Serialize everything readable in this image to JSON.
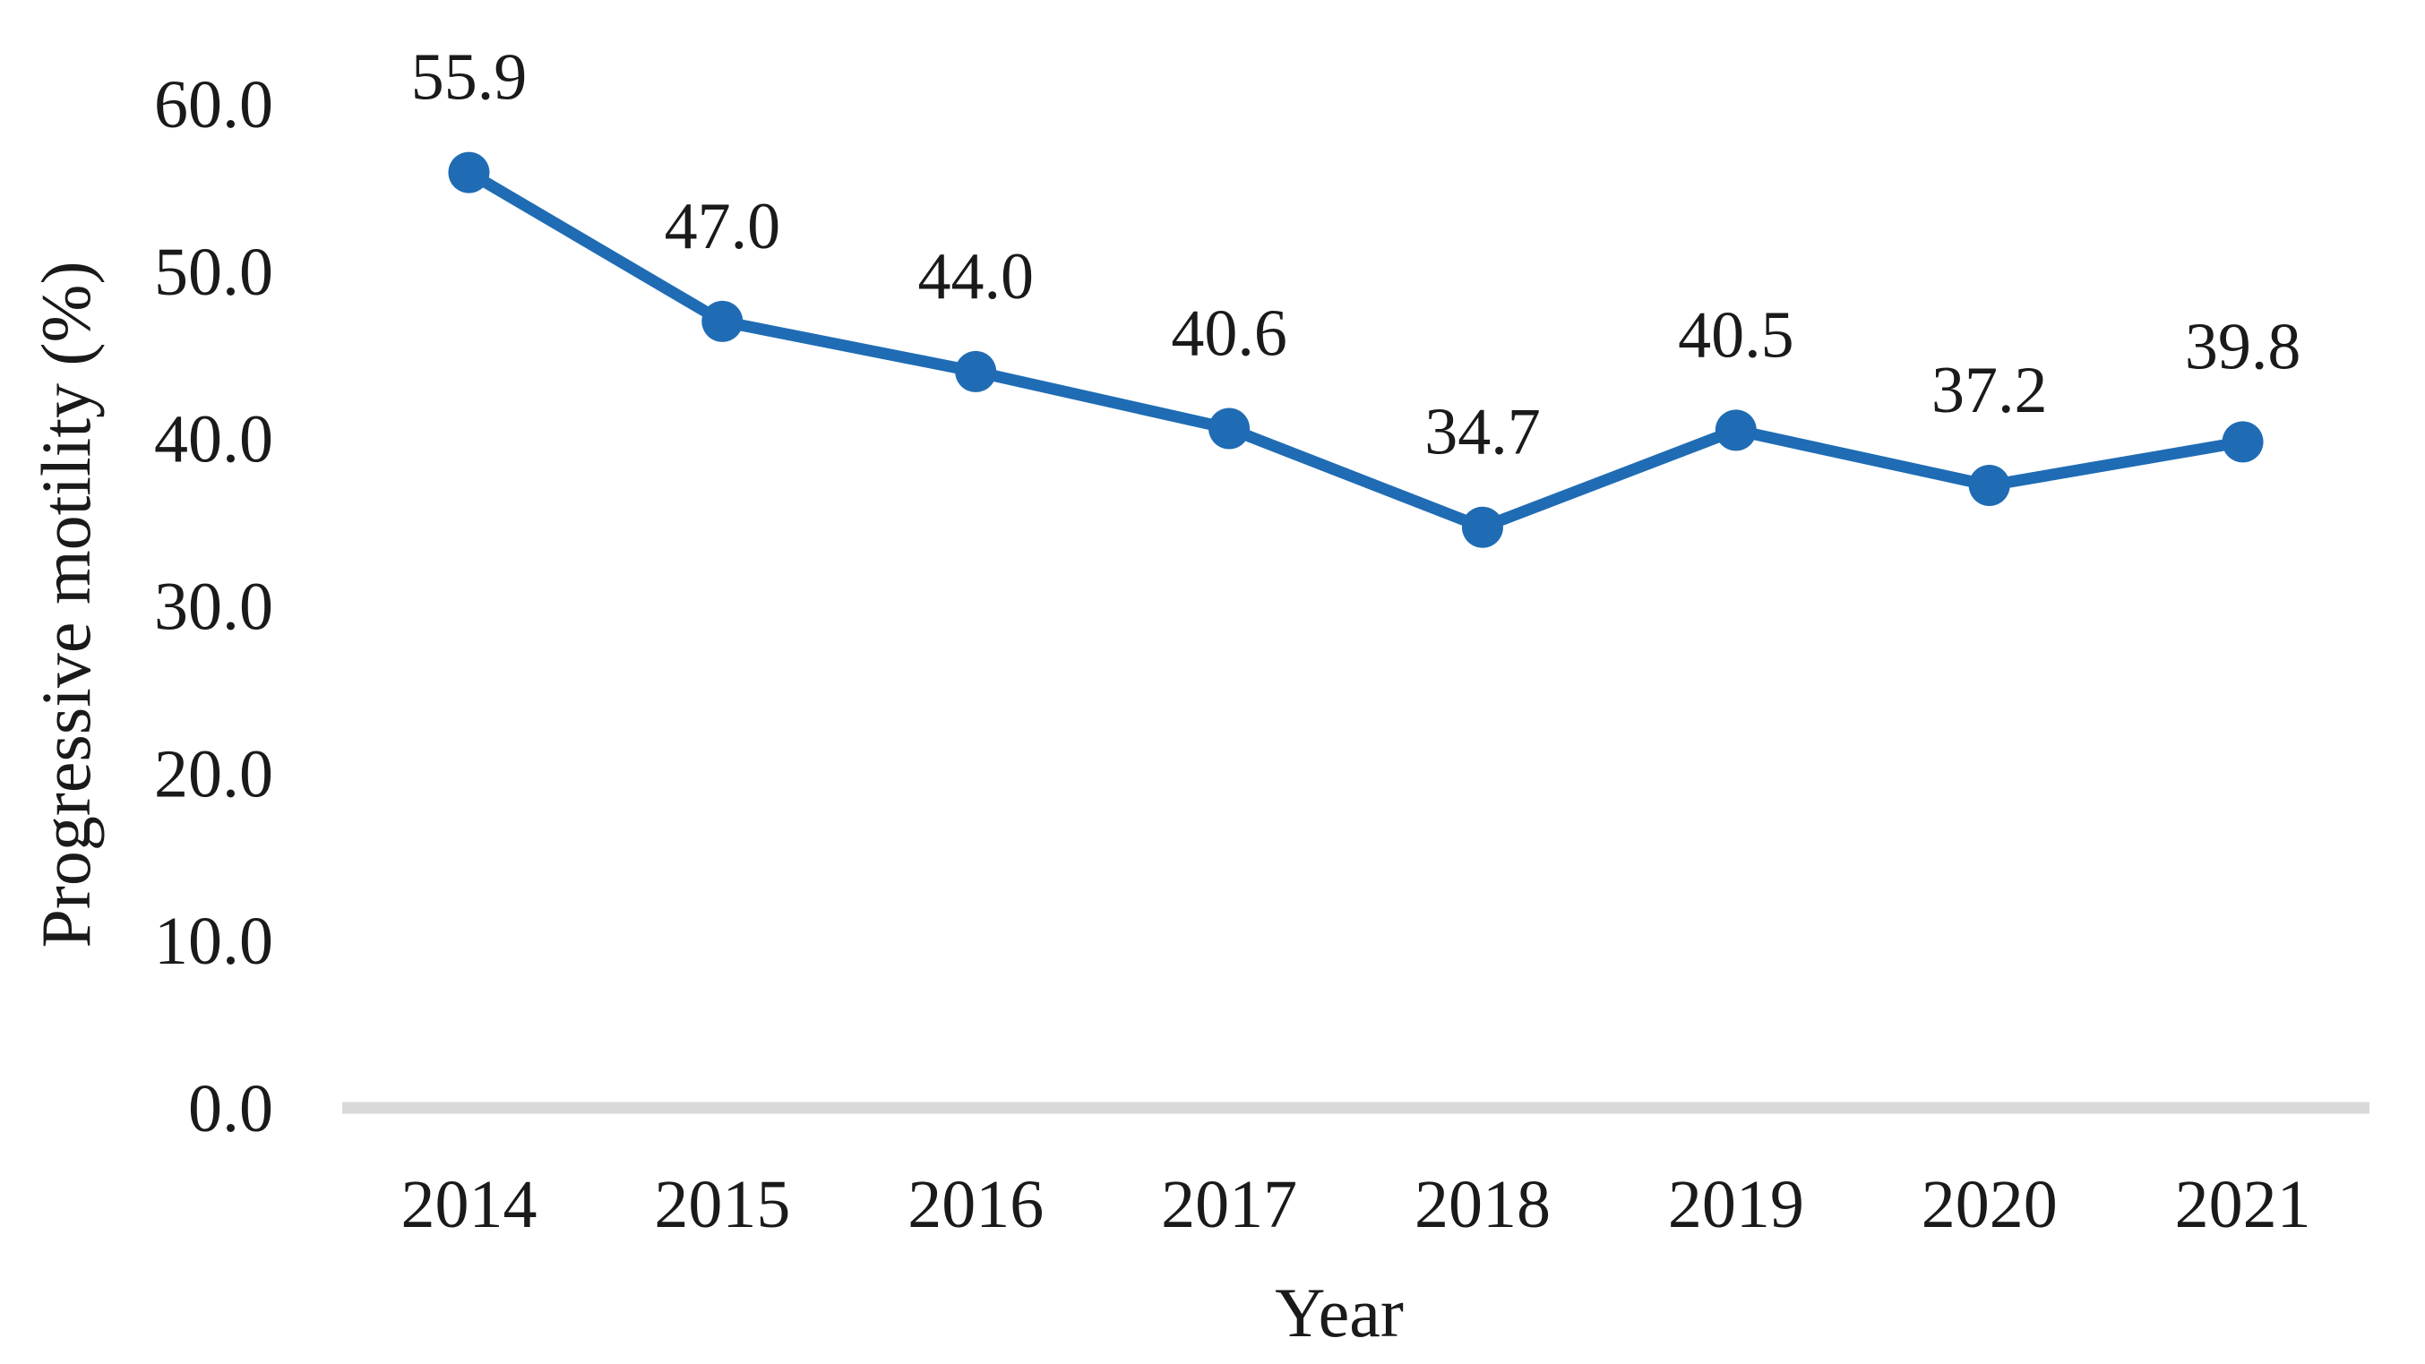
{
  "chart_data": {
    "type": "line",
    "title": "",
    "xlabel": "Year",
    "ylabel": "Progressive motility (%)",
    "categories": [
      "2014",
      "2015",
      "2016",
      "2017",
      "2018",
      "2019",
      "2020",
      "2021"
    ],
    "series": [
      {
        "name": "Progressive motility",
        "values": [
          55.9,
          47.0,
          44.0,
          40.6,
          34.7,
          40.5,
          37.2,
          39.8
        ],
        "point_labels": [
          "55.9",
          "47.0",
          "44.0",
          "40.6",
          "34.7",
          "40.5",
          "37.2",
          "39.8"
        ]
      }
    ],
    "ylim": [
      0,
      60
    ],
    "yticks": [
      0,
      10,
      20,
      30,
      40,
      50,
      60
    ],
    "ytick_labels": [
      "0.0",
      "10.0",
      "20.0",
      "30.0",
      "40.0",
      "50.0",
      "60.0"
    ],
    "grid": false,
    "legend_position": "none",
    "marker": "circle",
    "point_label_position": "above",
    "colors": {
      "series": "#1f6cb4",
      "axis_line": "#d9d9d9",
      "text": "#1a1a1a"
    }
  }
}
